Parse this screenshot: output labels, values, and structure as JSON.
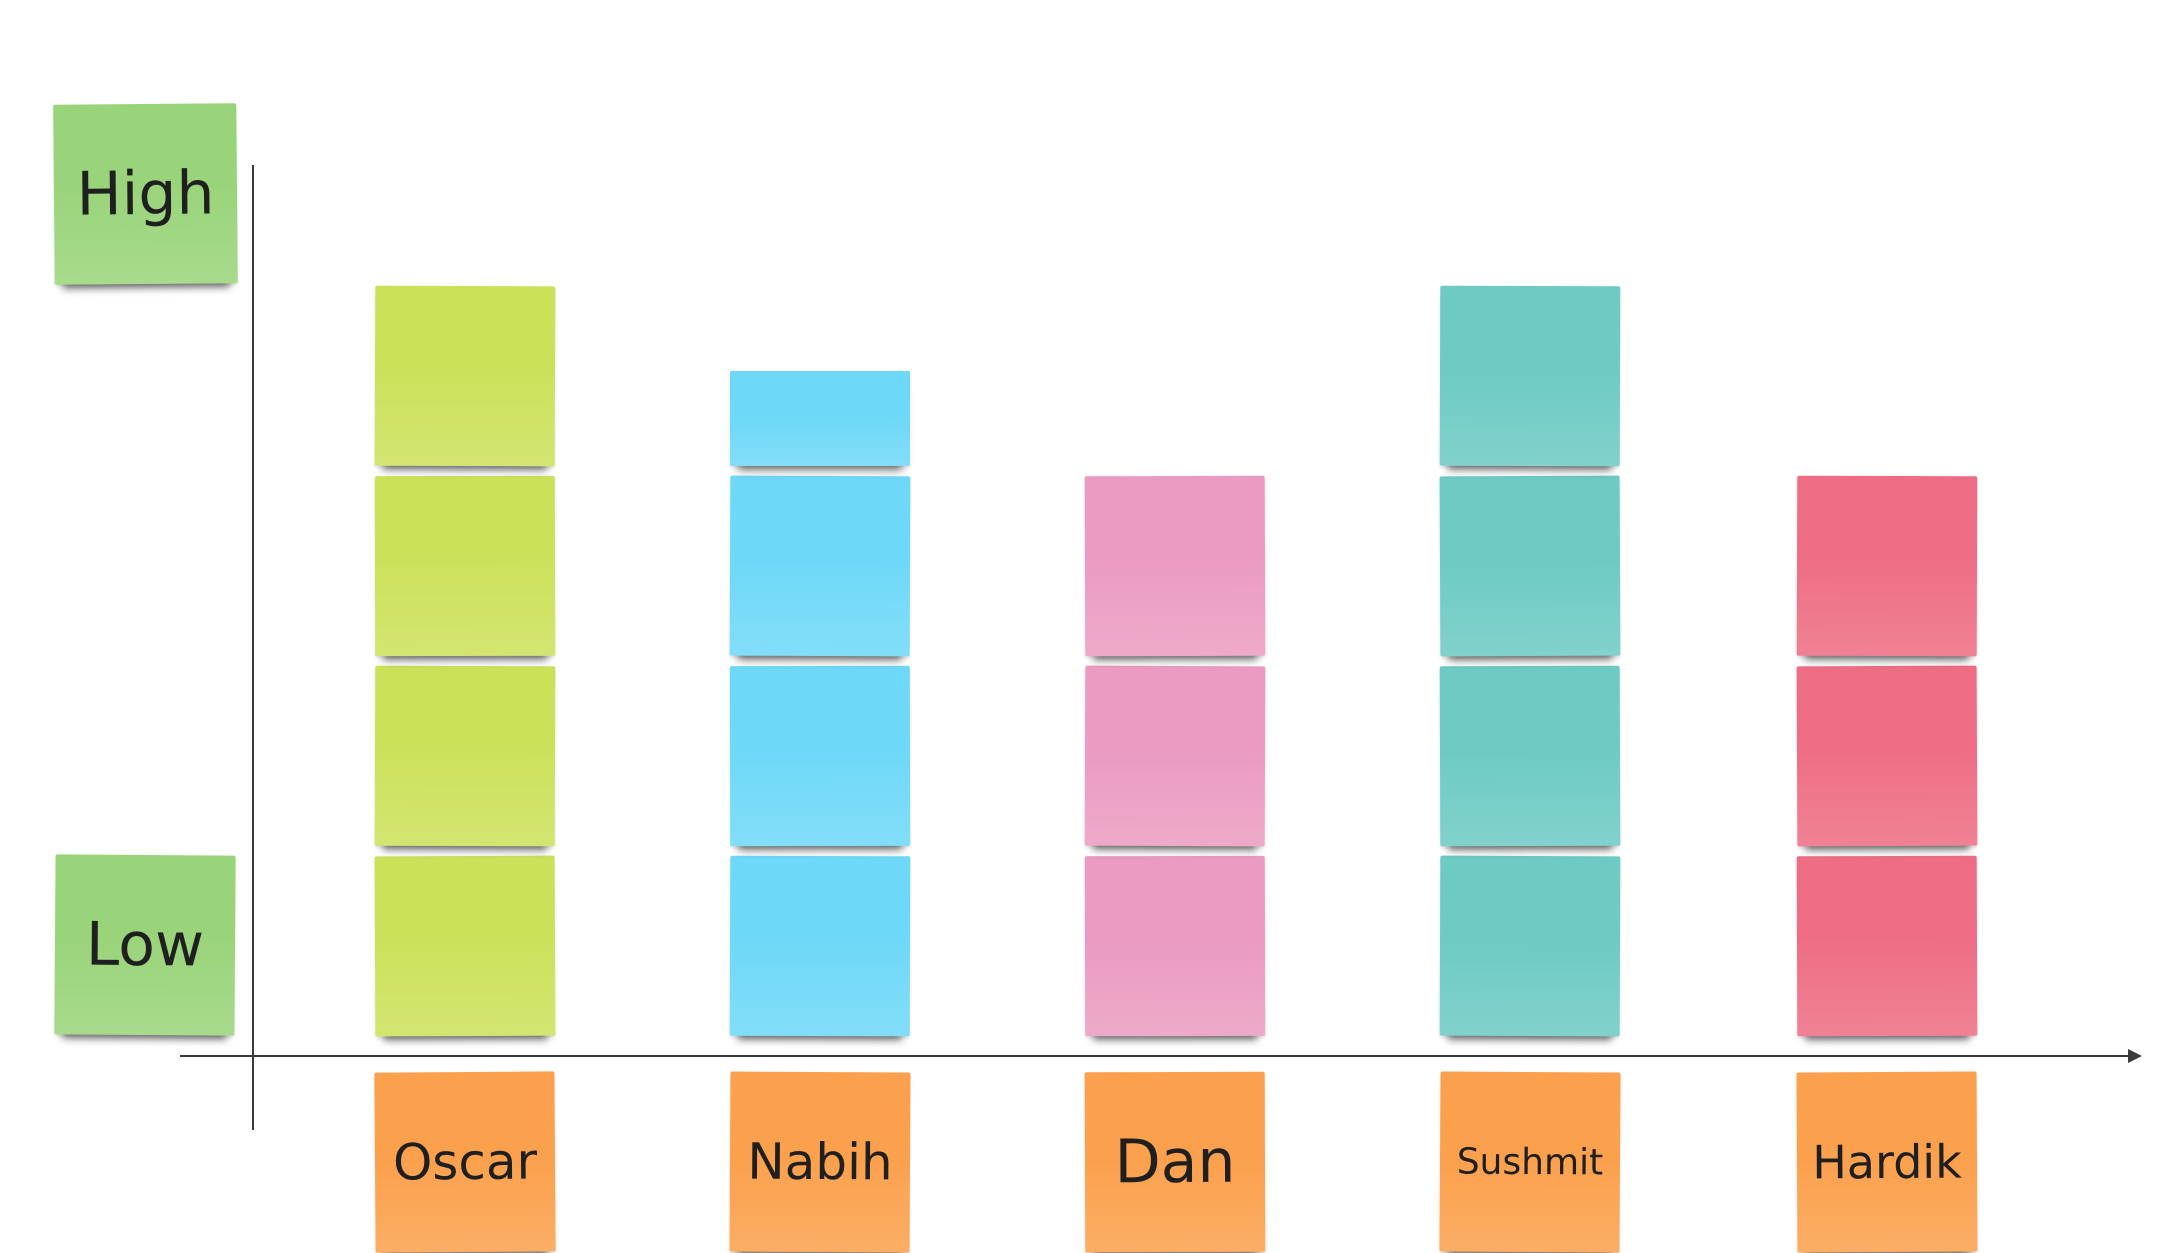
{
  "axis": {
    "y_high_label": "High",
    "y_low_label": "Low"
  },
  "colors": {
    "axis_label_note": "#9ad47a",
    "name_note": "#fba04c",
    "axis_line": "#3a3a3a"
  },
  "chart_data": {
    "type": "bar",
    "categories": [
      "Oscar",
      "Nabih",
      "Dan",
      "Sushmit",
      "Hardik"
    ],
    "values": [
      4,
      3.5,
      3,
      4,
      3
    ],
    "ylim": [
      0,
      4
    ],
    "series_colors": [
      "#cce15a",
      "#6ed8f8",
      "#eb9bc0",
      "#6dcac4",
      "#ee6d84"
    ]
  }
}
